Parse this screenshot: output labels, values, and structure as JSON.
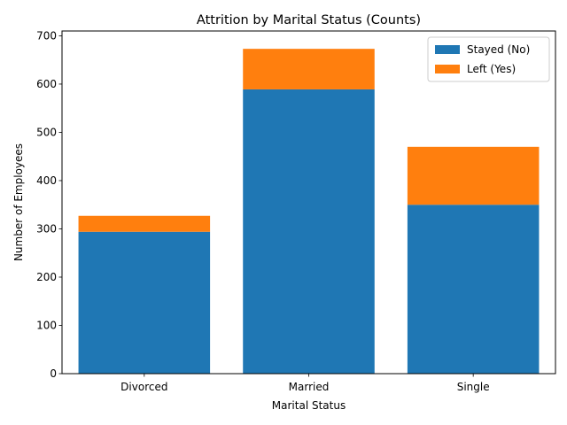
{
  "chart_data": {
    "type": "bar",
    "stacked": true,
    "title": "Attrition by Marital Status (Counts)",
    "xlabel": "Marital Status",
    "ylabel": "Number of Employees",
    "categories": [
      "Divorced",
      "Married",
      "Single"
    ],
    "series": [
      {
        "name": "Stayed (No)",
        "color": "#1f77b4",
        "values": [
          294,
          589,
          350
        ]
      },
      {
        "name": "Left (Yes)",
        "color": "#ff7f0e",
        "values": [
          33,
          84,
          120
        ]
      }
    ],
    "ylim": [
      0,
      710
    ],
    "yticks": [
      0,
      100,
      200,
      300,
      400,
      500,
      600,
      700
    ],
    "grid": false,
    "legend_position": "top-right"
  }
}
